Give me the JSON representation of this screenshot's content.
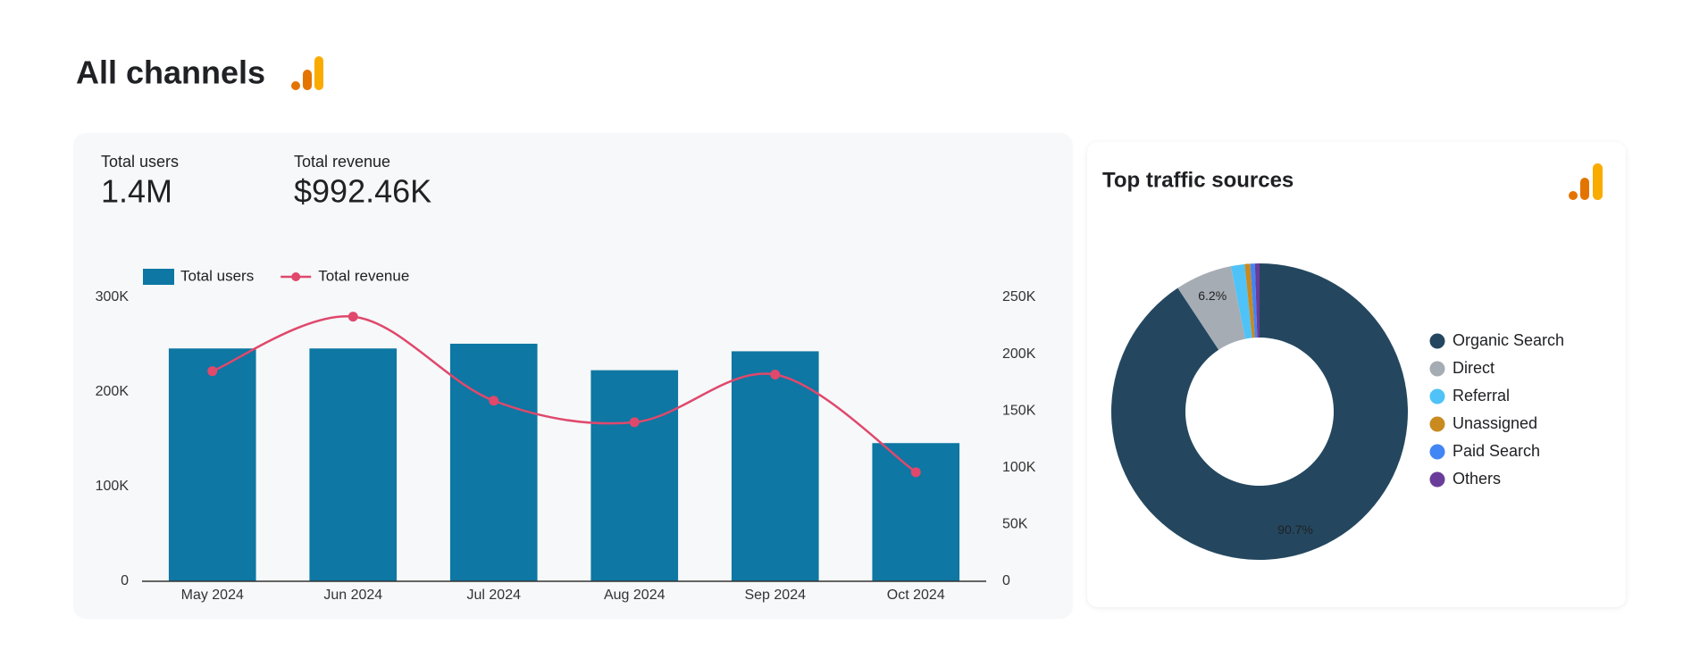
{
  "header": {
    "title": "All channels"
  },
  "kpis": [
    {
      "label": "Total users",
      "value": "1.4M"
    },
    {
      "label": "Total revenue",
      "value": "$992.46K"
    }
  ],
  "chart_data": [
    {
      "type": "bar",
      "categories": [
        "May 2024",
        "Jun 2024",
        "Jul 2024",
        "Aug 2024",
        "Sep 2024",
        "Oct 2024"
      ],
      "series": [
        {
          "name": "Total users",
          "type": "bar",
          "color": "#0e77a3",
          "values": [
            246000,
            246000,
            251000,
            223000,
            243000,
            146000
          ]
        },
        {
          "name": "Total revenue",
          "type": "line",
          "axis": "y2",
          "color": "#e0486c",
          "values": [
            185000,
            233000,
            159000,
            140000,
            182000,
            96000
          ]
        }
      ],
      "ylim": [
        0,
        300000
      ],
      "yticks": [
        0,
        {
          "value": 100000,
          "label": "100K"
        },
        {
          "value": 200000,
          "label": "200K"
        },
        {
          "value": 300000,
          "label": "300K"
        }
      ],
      "y2lim": [
        0,
        250000
      ],
      "y2ticks": [
        0,
        {
          "value": 50000,
          "label": "50K"
        },
        {
          "value": 100000,
          "label": "100K"
        },
        {
          "value": 150000,
          "label": "150K"
        },
        {
          "value": 200000,
          "label": "200K"
        },
        {
          "value": 250000,
          "label": "250K"
        }
      ],
      "legend": "top-left",
      "grid": false
    },
    {
      "type": "pie",
      "title": "Top traffic sources",
      "donut": true,
      "categories": [
        "Organic Search",
        "Direct",
        "Referral",
        "Unassigned",
        "Paid Search",
        "Others"
      ],
      "values": [
        90.7,
        6.2,
        1.5,
        0.6,
        0.5,
        0.5
      ],
      "value_labels": [
        "90.7%",
        "6.2%",
        null,
        null,
        null,
        null
      ],
      "colors": [
        "#24475f",
        "#a6acb3",
        "#4fc3f7",
        "#c98a1f",
        "#4285f4",
        "#6a3d9a"
      ],
      "legend": "right"
    }
  ]
}
